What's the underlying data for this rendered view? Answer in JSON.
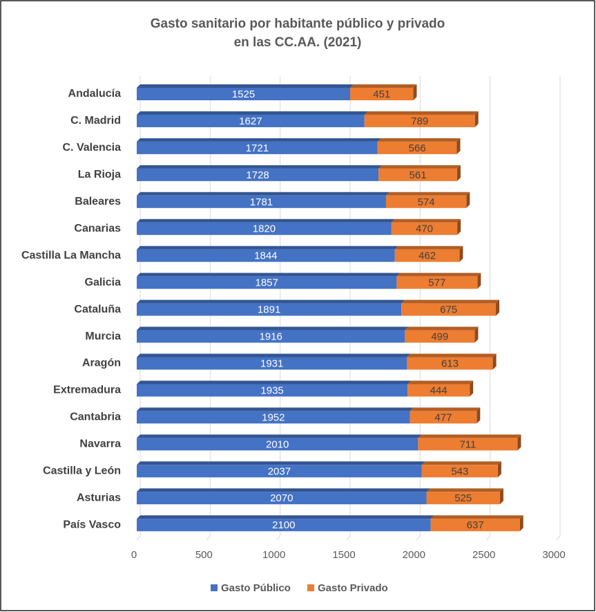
{
  "chart_data": {
    "type": "bar",
    "stacked": true,
    "orientation": "horizontal",
    "title": [
      "Gasto sanitario por habitante público y privado",
      "en las CC.AA. (2021)"
    ],
    "categories": [
      "Andalucía",
      "C. Madrid",
      "C. Valencia",
      "La Rioja",
      "Baleares",
      "Canarias",
      "Castilla La Mancha",
      "Galicia",
      "Cataluña",
      "Murcia",
      "Aragón",
      "Extremadura",
      "Cantabria",
      "Navarra",
      "Castilla y León",
      "Asturias",
      "País Vasco"
    ],
    "series": [
      {
        "name": "Gasto Público",
        "color": "#4472c4",
        "values": [
          1525,
          1627,
          1721,
          1728,
          1781,
          1820,
          1844,
          1857,
          1891,
          1916,
          1931,
          1935,
          1952,
          2010,
          2037,
          2070,
          2100
        ]
      },
      {
        "name": "Gasto Privado",
        "color": "#ed7d31",
        "values": [
          451,
          789,
          566,
          561,
          574,
          470,
          462,
          577,
          675,
          499,
          613,
          444,
          477,
          711,
          543,
          525,
          637
        ]
      }
    ],
    "xlim": [
      0,
      3000
    ],
    "xticks": [
      0,
      500,
      1000,
      1500,
      2000,
      2500,
      3000
    ],
    "grid": true,
    "legend": "bottom"
  }
}
